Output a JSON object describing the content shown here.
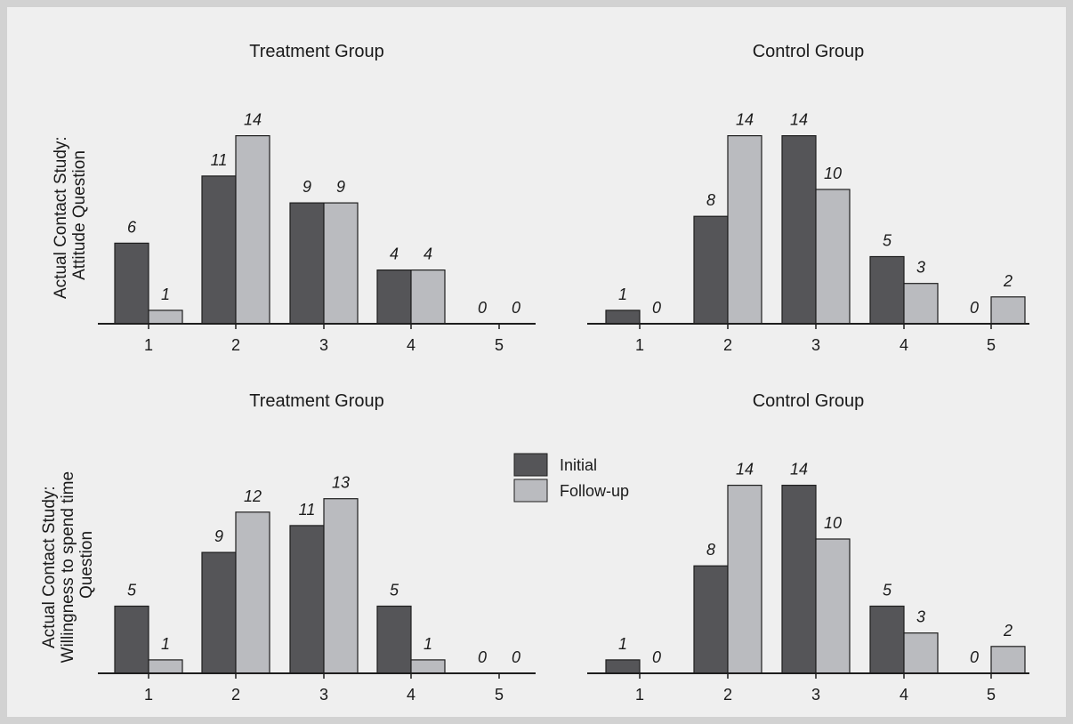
{
  "colors": {
    "background": "#efefef",
    "frame": "#d2d2d2",
    "initial": "#555558",
    "follow_up": "#babbbf",
    "stroke": "#1e1e1e",
    "text": "#1a1a1a"
  },
  "legend": {
    "placement": "center, between lower panels",
    "items": [
      {
        "name": "Initial",
        "color_key": "initial"
      },
      {
        "name": "Follow-up",
        "color_key": "follow_up"
      }
    ]
  },
  "row_labels": [
    {
      "lines": [
        "Actual Contact Study:",
        "Attitude Question"
      ]
    },
    {
      "lines": [
        "Actual Contact Study:",
        "Willingness to spend time",
        "Question"
      ]
    }
  ],
  "chart_data": [
    {
      "type": "bar",
      "title": "Treatment Group",
      "categories": [
        "1",
        "2",
        "3",
        "4",
        "5"
      ],
      "series": [
        {
          "name": "Initial",
          "values": [
            6,
            11,
            9,
            4,
            0
          ]
        },
        {
          "name": "Follow-up",
          "values": [
            1,
            14,
            9,
            4,
            0
          ]
        }
      ],
      "ylim": [
        0,
        14
      ],
      "grid": false
    },
    {
      "type": "bar",
      "title": "Control Group",
      "categories": [
        "1",
        "2",
        "3",
        "4",
        "5"
      ],
      "series": [
        {
          "name": "Initial",
          "values": [
            1,
            8,
            14,
            5,
            0
          ]
        },
        {
          "name": "Follow-up",
          "values": [
            0,
            14,
            10,
            3,
            2
          ]
        }
      ],
      "ylim": [
        0,
        14
      ],
      "grid": false
    },
    {
      "type": "bar",
      "title": "Treatment Group",
      "categories": [
        "1",
        "2",
        "3",
        "4",
        "5"
      ],
      "series": [
        {
          "name": "Initial",
          "values": [
            5,
            9,
            11,
            5,
            0
          ]
        },
        {
          "name": "Follow-up",
          "values": [
            1,
            12,
            13,
            1,
            0
          ]
        }
      ],
      "ylim": [
        0,
        14
      ],
      "grid": false
    },
    {
      "type": "bar",
      "title": "Control Group",
      "categories": [
        "1",
        "2",
        "3",
        "4",
        "5"
      ],
      "series": [
        {
          "name": "Initial",
          "values": [
            1,
            8,
            14,
            5,
            0
          ]
        },
        {
          "name": "Follow-up",
          "values": [
            0,
            14,
            10,
            3,
            2
          ]
        }
      ],
      "ylim": [
        0,
        14
      ],
      "grid": false
    }
  ]
}
